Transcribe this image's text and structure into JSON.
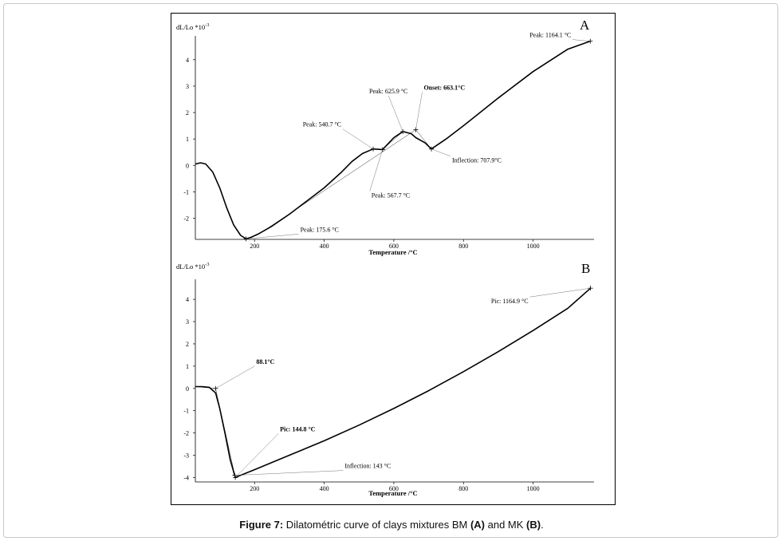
{
  "caption": {
    "prefix": "Figure 7:",
    "text_1": " Dilatométric curve of clays mixtures BM ",
    "label_a": "(A)",
    "text_2": " and MK ",
    "label_b": "(B)",
    "text_3": "."
  },
  "chart_data": [
    {
      "type": "line",
      "panel_label": "A",
      "ylabel": "dL/Lo *10",
      "ylabel_exp": "-3",
      "xlabel": "Temperature /°C",
      "xlim": [
        30,
        1175
      ],
      "ylim": [
        -2.8,
        4.9
      ],
      "xticks": [
        200,
        400,
        600,
        800,
        1000
      ],
      "yticks": [
        -2,
        -1,
        0,
        1,
        2,
        3,
        4
      ],
      "grid": false,
      "series": [
        {
          "x": [
            30,
            45,
            60,
            80,
            100,
            120,
            140,
            160,
            175.6,
            190,
            210,
            250,
            300,
            350,
            400,
            450,
            480,
            510,
            540.7,
            567.7,
            600,
            625.9,
            650,
            663.1,
            690,
            707.9,
            750,
            800,
            900,
            1000,
            1100,
            1164.1
          ],
          "y": [
            0.05,
            0.1,
            0.05,
            -0.25,
            -0.85,
            -1.6,
            -2.25,
            -2.65,
            -2.78,
            -2.72,
            -2.6,
            -2.3,
            -1.85,
            -1.35,
            -0.85,
            -0.25,
            0.15,
            0.45,
            0.62,
            0.6,
            1.05,
            1.28,
            1.2,
            1.05,
            0.85,
            0.62,
            1.0,
            1.5,
            2.55,
            3.55,
            4.4,
            4.7
          ]
        }
      ],
      "annotations": [
        {
          "text": "Peak: 175.6 °C",
          "x": 175.6,
          "y": -2.78,
          "bold": false
        },
        {
          "text": "Peak: 540.7 °C",
          "x": 540.7,
          "y": 0.62,
          "bold": false
        },
        {
          "text": "Peak: 567.7 °C",
          "x": 567.7,
          "y": 0.6,
          "bold": false
        },
        {
          "text": "Peak: 625.9 °C",
          "x": 625.9,
          "y": 1.28,
          "bold": false
        },
        {
          "text": "Onset: 663.1°C",
          "x": 663.1,
          "y": 1.35,
          "bold": true
        },
        {
          "text": "Inflection: 707.9°C",
          "x": 707.9,
          "y": 0.62,
          "bold": false
        },
        {
          "text": "Peak: 1164.1 °C",
          "x": 1164.1,
          "y": 4.7,
          "bold": false
        }
      ]
    },
    {
      "type": "line",
      "panel_label": "B",
      "ylabel": "dL/Lo *10",
      "ylabel_exp": "-3",
      "xlabel": "Temperature /°C",
      "xlim": [
        30,
        1175
      ],
      "ylim": [
        -4.2,
        4.9
      ],
      "xticks": [
        200,
        400,
        600,
        800,
        1000
      ],
      "yticks": [
        -4,
        -3,
        -2,
        -1,
        0,
        1,
        2,
        3,
        4
      ],
      "grid": false,
      "series": [
        {
          "x": [
            30,
            50,
            70,
            88.1,
            100,
            115,
            130,
            143,
            144.8,
            160,
            200,
            300,
            400,
            500,
            600,
            700,
            800,
            900,
            1000,
            1100,
            1164.9
          ],
          "y": [
            0.08,
            0.08,
            0.05,
            -0.2,
            -0.9,
            -2.0,
            -3.2,
            -3.9,
            -4.0,
            -3.9,
            -3.65,
            -3.0,
            -2.35,
            -1.65,
            -0.9,
            -0.1,
            0.75,
            1.65,
            2.6,
            3.6,
            4.5
          ]
        }
      ],
      "annotations": [
        {
          "text": "88.1°C",
          "x": 88.1,
          "y": 0.0,
          "bold": true
        },
        {
          "text": "Pic: 144.8 °C",
          "x": 144.8,
          "y": -4.0,
          "bold": true
        },
        {
          "text": "Inflection: 143 °C",
          "x": 143,
          "y": -3.9,
          "bold": false
        },
        {
          "text": "Pic: 1164.9 °C",
          "x": 1164.9,
          "y": 4.5,
          "bold": false
        }
      ]
    }
  ]
}
